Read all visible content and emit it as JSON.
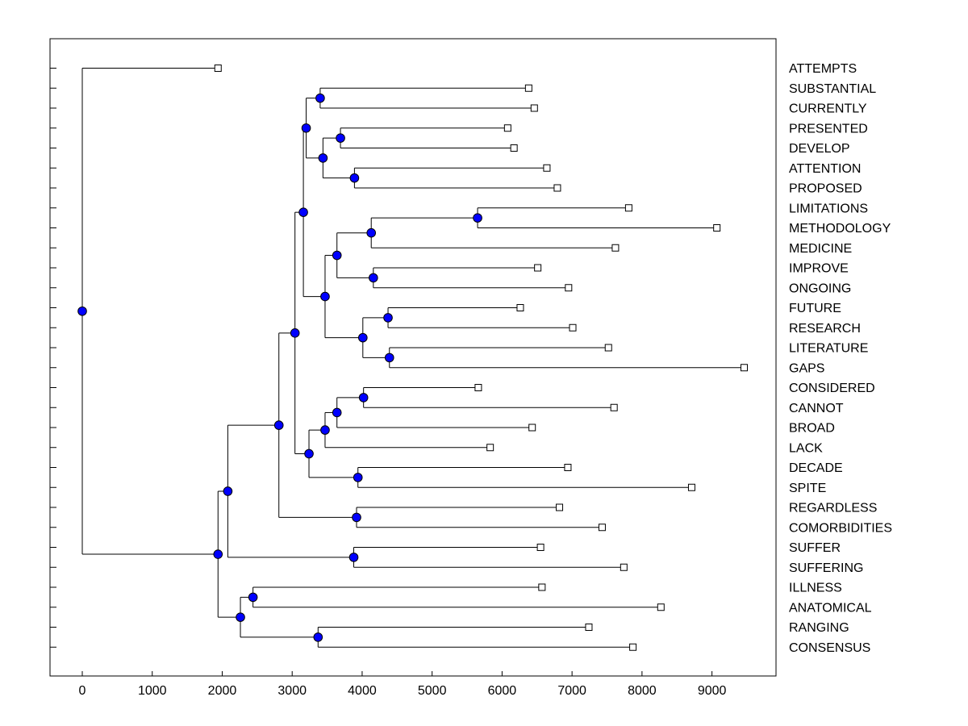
{
  "chart_data": {
    "type": "dendrogram",
    "x_ticks": [
      0,
      1000,
      2000,
      3000,
      4000,
      5000,
      6000,
      7000,
      8000,
      9000
    ],
    "xlim": [
      -450,
      9950
    ],
    "colors": {
      "node": "#0000ff",
      "line": "#000000",
      "leaf": "#ffffff"
    },
    "leaves": [
      {
        "label": "ATTEMPTS",
        "x": 1940
      },
      {
        "label": "SUBSTANTIAL",
        "x": 6380
      },
      {
        "label": "CURRENTLY",
        "x": 6460
      },
      {
        "label": "PRESENTED",
        "x": 6080
      },
      {
        "label": "DEVELOP",
        "x": 6170
      },
      {
        "label": "ATTENTION",
        "x": 6640
      },
      {
        "label": "PROPOSED",
        "x": 6790
      },
      {
        "label": "LIMITATIONS",
        "x": 7810
      },
      {
        "label": "METHODOLOGY",
        "x": 9070
      },
      {
        "label": "MEDICINE",
        "x": 7620
      },
      {
        "label": "IMPROVE",
        "x": 6510
      },
      {
        "label": "ONGOING",
        "x": 6950
      },
      {
        "label": "FUTURE",
        "x": 6260
      },
      {
        "label": "RESEARCH",
        "x": 7010
      },
      {
        "label": "LITERATURE",
        "x": 7520
      },
      {
        "label": "GAPS",
        "x": 9460
      },
      {
        "label": "CONSIDERED",
        "x": 5660
      },
      {
        "label": "CANNOT",
        "x": 7600
      },
      {
        "label": "BROAD",
        "x": 6430
      },
      {
        "label": "LACK",
        "x": 5830
      },
      {
        "label": "DECADE",
        "x": 6940
      },
      {
        "label": "SPITE",
        "x": 8710
      },
      {
        "label": "REGARDLESS",
        "x": 6820
      },
      {
        "label": "COMORBIDITIES",
        "x": 7430
      },
      {
        "label": "SUFFER",
        "x": 6550
      },
      {
        "label": "SUFFERING",
        "x": 7740
      },
      {
        "label": "ILLNESS",
        "x": 6570
      },
      {
        "label": "ANATOMICAL",
        "x": 8270
      },
      {
        "label": "RANGING",
        "x": 7240
      },
      {
        "label": "CONSENSUS",
        "x": 7870
      }
    ],
    "nodes": [
      {
        "id": "n1",
        "x": 3400,
        "children": [
          "L1",
          "L2"
        ]
      },
      {
        "id": "n2",
        "x": 3690,
        "children": [
          "L3",
          "L4"
        ]
      },
      {
        "id": "n3",
        "x": 3890,
        "children": [
          "L5",
          "L6"
        ]
      },
      {
        "id": "n4",
        "x": 3440,
        "children": [
          "n2",
          "n3"
        ]
      },
      {
        "id": "n5",
        "x": 3200,
        "children": [
          "n1",
          "n4"
        ]
      },
      {
        "id": "n6",
        "x": 5650,
        "children": [
          "L7",
          "L8"
        ]
      },
      {
        "id": "n7",
        "x": 4130,
        "children": [
          "n6",
          "L9"
        ]
      },
      {
        "id": "n8",
        "x": 4160,
        "children": [
          "L10",
          "L11"
        ]
      },
      {
        "id": "n9",
        "x": 3640,
        "children": [
          "n7",
          "n8"
        ]
      },
      {
        "id": "n10",
        "x": 4370,
        "children": [
          "L12",
          "L13"
        ]
      },
      {
        "id": "n11",
        "x": 4390,
        "children": [
          "L14",
          "L15"
        ]
      },
      {
        "id": "n12",
        "x": 4010,
        "children": [
          "n10",
          "n11"
        ]
      },
      {
        "id": "n13",
        "x": 3470,
        "children": [
          "n9",
          "n12"
        ]
      },
      {
        "id": "n14",
        "x": 3160,
        "children": [
          "n5",
          "n13"
        ]
      },
      {
        "id": "n15",
        "x": 4020,
        "children": [
          "L16",
          "L17"
        ]
      },
      {
        "id": "n16",
        "x": 3640,
        "children": [
          "n15",
          "L18"
        ]
      },
      {
        "id": "n17",
        "x": 3470,
        "children": [
          "n16",
          "L19"
        ]
      },
      {
        "id": "n18",
        "x": 3940,
        "children": [
          "L20",
          "L21"
        ]
      },
      {
        "id": "n19",
        "x": 3240,
        "children": [
          "n17",
          "n18"
        ]
      },
      {
        "id": "n20",
        "x": 3040,
        "children": [
          "n14",
          "n19"
        ]
      },
      {
        "id": "n21",
        "x": 3920,
        "children": [
          "L22",
          "L23"
        ]
      },
      {
        "id": "n22",
        "x": 2810,
        "children": [
          "n20",
          "n21"
        ]
      },
      {
        "id": "n23",
        "x": 3880,
        "children": [
          "L24",
          "L25"
        ]
      },
      {
        "id": "n24",
        "x": 2080,
        "children": [
          "n22",
          "n23"
        ]
      },
      {
        "id": "n25",
        "x": 2440,
        "children": [
          "L26",
          "L27"
        ]
      },
      {
        "id": "n26",
        "x": 3370,
        "children": [
          "L28",
          "L29"
        ]
      },
      {
        "id": "n27",
        "x": 2260,
        "children": [
          "n25",
          "n26"
        ]
      },
      {
        "id": "n28",
        "x": 1940,
        "children": [
          "n24",
          "n27"
        ]
      },
      {
        "id": "n29",
        "x": 0,
        "children": [
          "L0",
          "n28"
        ]
      }
    ]
  }
}
